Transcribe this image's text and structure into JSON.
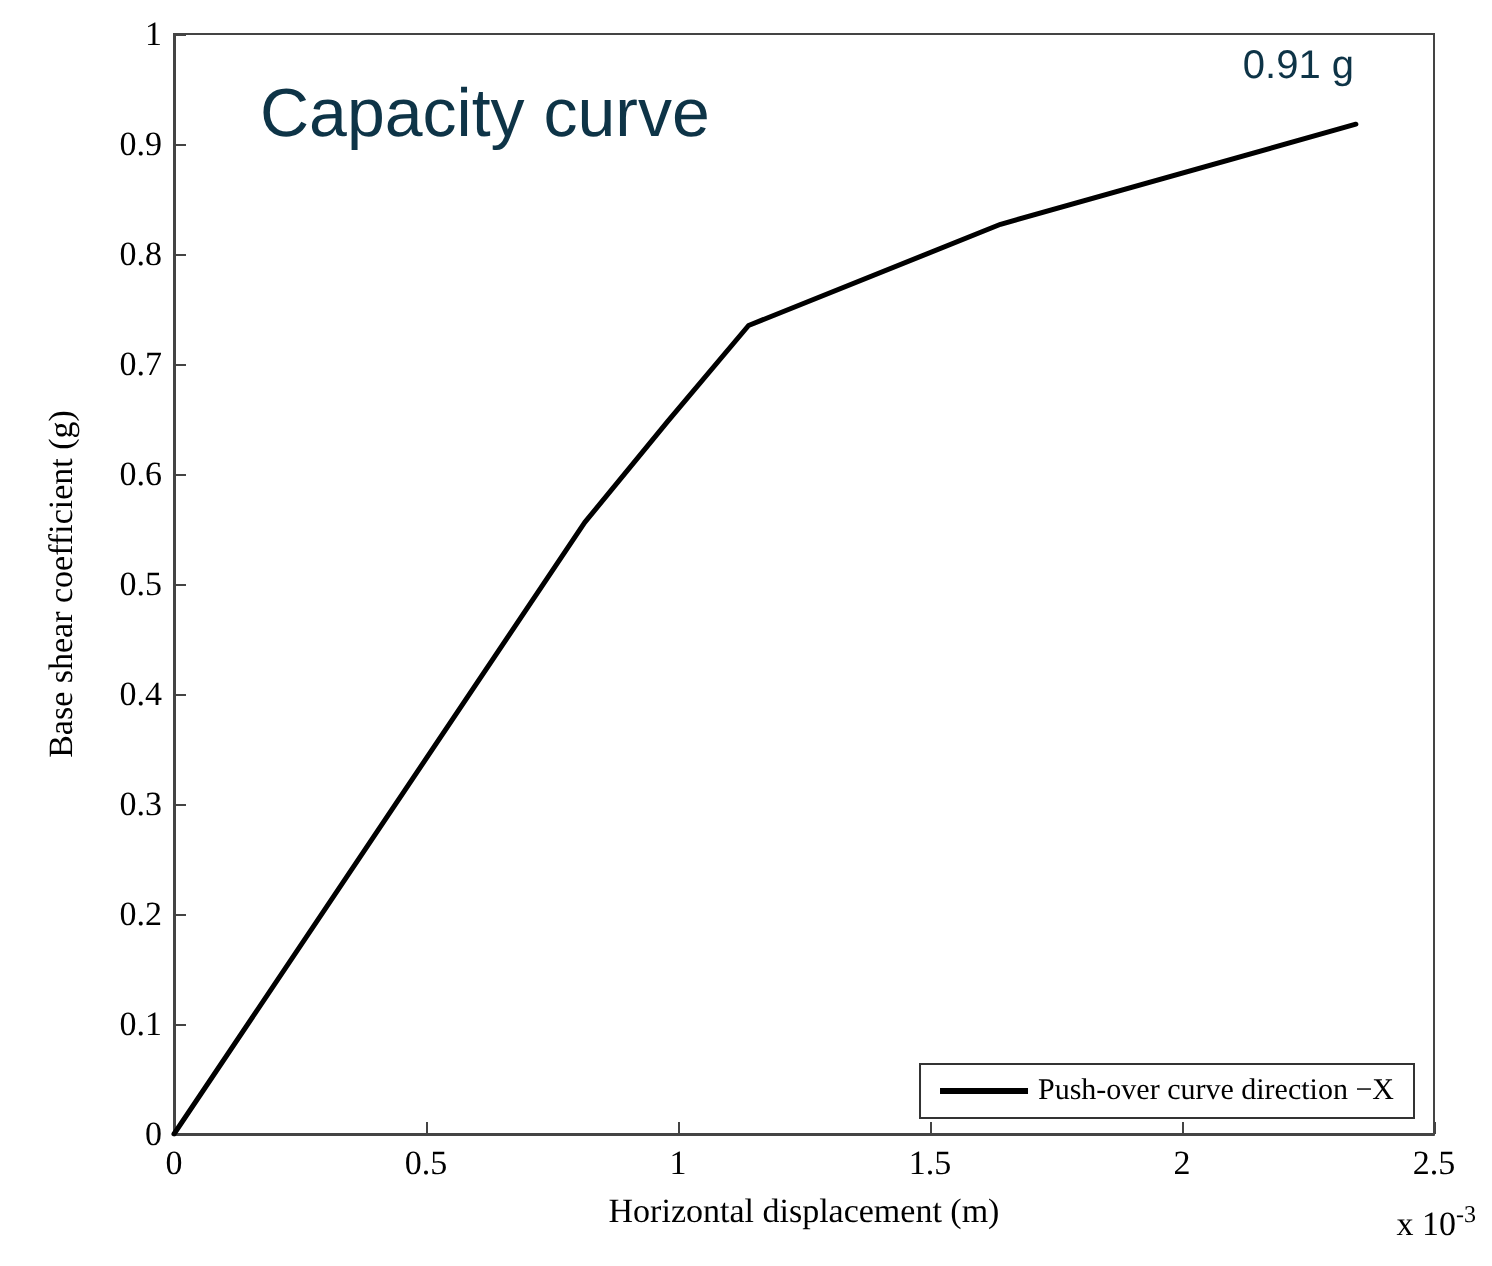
{
  "chart_data": {
    "type": "line",
    "title": "Capacity curve",
    "xlabel": "Horizontal displacement (m)",
    "ylabel": "Base shear coefficient (g)",
    "x": [
      0,
      0.815,
      0.98,
      1.14,
      1.64,
      2.345
    ],
    "series": [
      {
        "name": "Push-over curve direction −X",
        "color": "#000000",
        "values": [
          0,
          0.556,
          0.648,
          0.735,
          0.827,
          0.918
        ]
      }
    ],
    "xlim": [
      0,
      2.5
    ],
    "xticks": [
      0,
      0.5,
      1,
      1.5,
      2,
      2.5
    ],
    "ylim": [
      0,
      1
    ],
    "yticks": [
      0,
      0.1,
      0.2,
      0.3,
      0.4,
      0.5,
      0.6,
      0.7,
      0.8,
      0.9,
      1
    ],
    "annotations": [
      "0.91 g",
      "x 10$^{-3}$"
    ],
    "grid": false,
    "legend": "bottom right",
    "marker": "none",
    "line_style": "solid"
  }
}
